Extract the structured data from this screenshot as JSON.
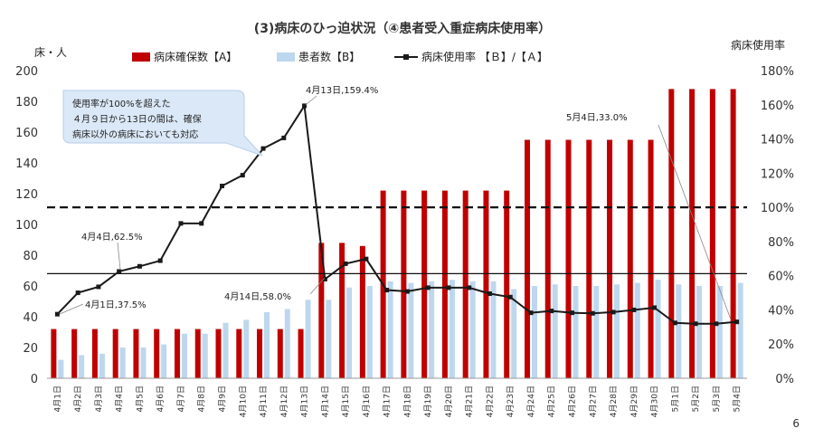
{
  "page_number": "6",
  "chart_data": {
    "type": "bar",
    "title": "(3)病床のひっ迫状況（④患者受入重症病床使用率）",
    "ylabel_left": "床・人",
    "ylabel_right": "病床使用率",
    "ylim_left": [
      0,
      200
    ],
    "ylim_right": [
      0,
      180
    ],
    "yticks_left": [
      "0",
      "20",
      "40",
      "60",
      "80",
      "100",
      "120",
      "140",
      "160",
      "180",
      "200"
    ],
    "yticks_right": [
      "0%",
      "20%",
      "40%",
      "60%",
      "80%",
      "100%",
      "120%",
      "140%",
      "160%",
      "180%"
    ],
    "grid": false,
    "legend_position": "top",
    "categories": [
      "4月1日",
      "4月2日",
      "4月3日",
      "4月4日",
      "4月5日",
      "4月6日",
      "4月7日",
      "4月8日",
      "4月9日",
      "4月10日",
      "4月11日",
      "4月12日",
      "4月13日",
      "4月14日",
      "4月15日",
      "4月16日",
      "4月17日",
      "4月18日",
      "4月19日",
      "4月20日",
      "4月21日",
      "4月22日",
      "4月23日",
      "4月24日",
      "4月25日",
      "4月26日",
      "4月27日",
      "4月28日",
      "4月29日",
      "4月30日",
      "5月1日",
      "5月2日",
      "5月3日",
      "5月4日"
    ],
    "series": [
      {
        "name": "病床確保数【A】",
        "type": "bar",
        "axis": "left",
        "color": "#c00000",
        "values": [
          32,
          32,
          32,
          32,
          32,
          32,
          32,
          32,
          32,
          32,
          32,
          32,
          32,
          88,
          88,
          86,
          122,
          122,
          122,
          122,
          122,
          122,
          122,
          155,
          155,
          155,
          155,
          155,
          155,
          155,
          188,
          188,
          188,
          188
        ]
      },
      {
        "name": "患者数【B】",
        "type": "bar",
        "axis": "left",
        "color": "#bdd7ee",
        "values": [
          12,
          15,
          16,
          20,
          20,
          22,
          29,
          29,
          36,
          38,
          43,
          45,
          51,
          51,
          59,
          60,
          63,
          62,
          63,
          64,
          63,
          63,
          58,
          60,
          61,
          60,
          60,
          61,
          62,
          64,
          61,
          60,
          60,
          62
        ]
      },
      {
        "name": "病床使用率 【Ｂ】/【Ａ】",
        "type": "line",
        "axis": "right",
        "color": "#1a1a1a",
        "values": [
          37.5,
          50.0,
          53.5,
          62.5,
          65.5,
          68.8,
          90.6,
          90.6,
          112.5,
          118.8,
          134.4,
          140.6,
          159.4,
          58.0,
          67.0,
          69.8,
          51.6,
          50.8,
          53.0,
          53.0,
          53.0,
          49.5,
          47.5,
          38.3,
          39.4,
          38.3,
          38.0,
          38.7,
          40.0,
          41.3,
          32.4,
          31.9,
          31.9,
          33.0
        ]
      }
    ],
    "reference_lines": [
      {
        "axis": "right",
        "value": 100,
        "style": "dashed"
      },
      {
        "axis": "left",
        "value": 68,
        "style": "solid"
      }
    ],
    "annotations": {
      "apr1": "4月1日,37.5%",
      "apr4": "4月4日,62.5%",
      "apr13": "4月13日,159.4%",
      "apr14": "4月14日,58.0%",
      "may4": "5月4日,33.0%",
      "note_line1": "使用率が100%を超えた",
      "note_line2": "４月９日から13日の間は、確保",
      "note_line3": "病床以外の病床においても対応"
    }
  }
}
